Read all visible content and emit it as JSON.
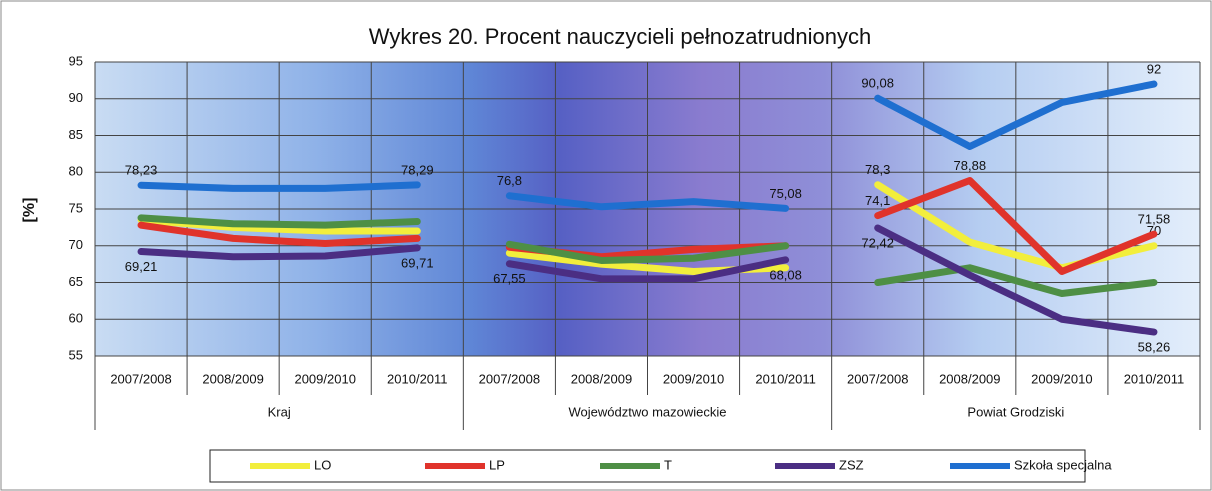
{
  "chart_data": {
    "type": "line",
    "title": "Wykres 20. Procent nauczycieli pełnozatrudnionych",
    "y_label": "[%]",
    "groups": [
      {
        "name": "Kraj",
        "categories": [
          "2007/2008",
          "2008/2009",
          "2009/2010",
          "2010/2011"
        ]
      },
      {
        "name": "Województwo mazowieckie",
        "categories": [
          "2007/2008",
          "2008/2009",
          "2009/2010",
          "2010/2011"
        ]
      },
      {
        "name": "Powiat Grodziski",
        "categories": [
          "2007/2008",
          "2008/2009",
          "2009/2010",
          "2010/2011"
        ]
      }
    ],
    "series": [
      {
        "name": "LO",
        "color": "#f2ee3c",
        "values": [
          73.5,
          72.5,
          72,
          72,
          69,
          67.5,
          66.5,
          67,
          78.3,
          70.5,
          67,
          70
        ],
        "value_labels": [
          null,
          null,
          null,
          null,
          null,
          null,
          null,
          null,
          "78,3",
          null,
          null,
          "70"
        ]
      },
      {
        "name": "LP",
        "color": "#e0332b",
        "values": [
          72.8,
          71,
          70.3,
          71,
          69.8,
          68.5,
          69.5,
          70,
          74.1,
          78.88,
          66.5,
          71.58
        ],
        "value_labels": [
          null,
          null,
          null,
          null,
          null,
          null,
          null,
          null,
          "74,1",
          "78,88",
          null,
          "71,58"
        ]
      },
      {
        "name": "T",
        "color": "#4e8f45",
        "values": [
          73.8,
          73,
          72.8,
          73.3,
          70.2,
          68,
          68.3,
          70,
          65,
          67,
          63.5,
          65
        ],
        "value_labels": [
          null,
          null,
          null,
          null,
          null,
          null,
          null,
          null,
          null,
          null,
          null,
          null
        ]
      },
      {
        "name": "ZSZ",
        "color": "#4b2e83",
        "values": [
          69.21,
          68.5,
          68.6,
          69.71,
          67.55,
          65.5,
          65.5,
          68.08,
          72.42,
          66,
          60,
          58.26
        ],
        "value_labels": [
          "69,21",
          null,
          null,
          "69,71",
          "67,55",
          null,
          null,
          "68,08",
          "72,42",
          null,
          null,
          "58,26"
        ]
      },
      {
        "name": "Szkoła specjalna",
        "color": "#1f6fd0",
        "values": [
          78.23,
          77.8,
          77.8,
          78.29,
          76.8,
          75.3,
          76,
          75.08,
          90.08,
          83.5,
          89.5,
          92
        ],
        "value_labels": [
          "78,23",
          null,
          null,
          "78,29",
          "76,8",
          null,
          null,
          "75,08",
          "90,08",
          null,
          null,
          "92"
        ]
      }
    ],
    "ylim": [
      55,
      95
    ],
    "yticks": [
      55,
      60,
      65,
      70,
      75,
      80,
      85,
      90,
      95
    ],
    "grid": true
  }
}
